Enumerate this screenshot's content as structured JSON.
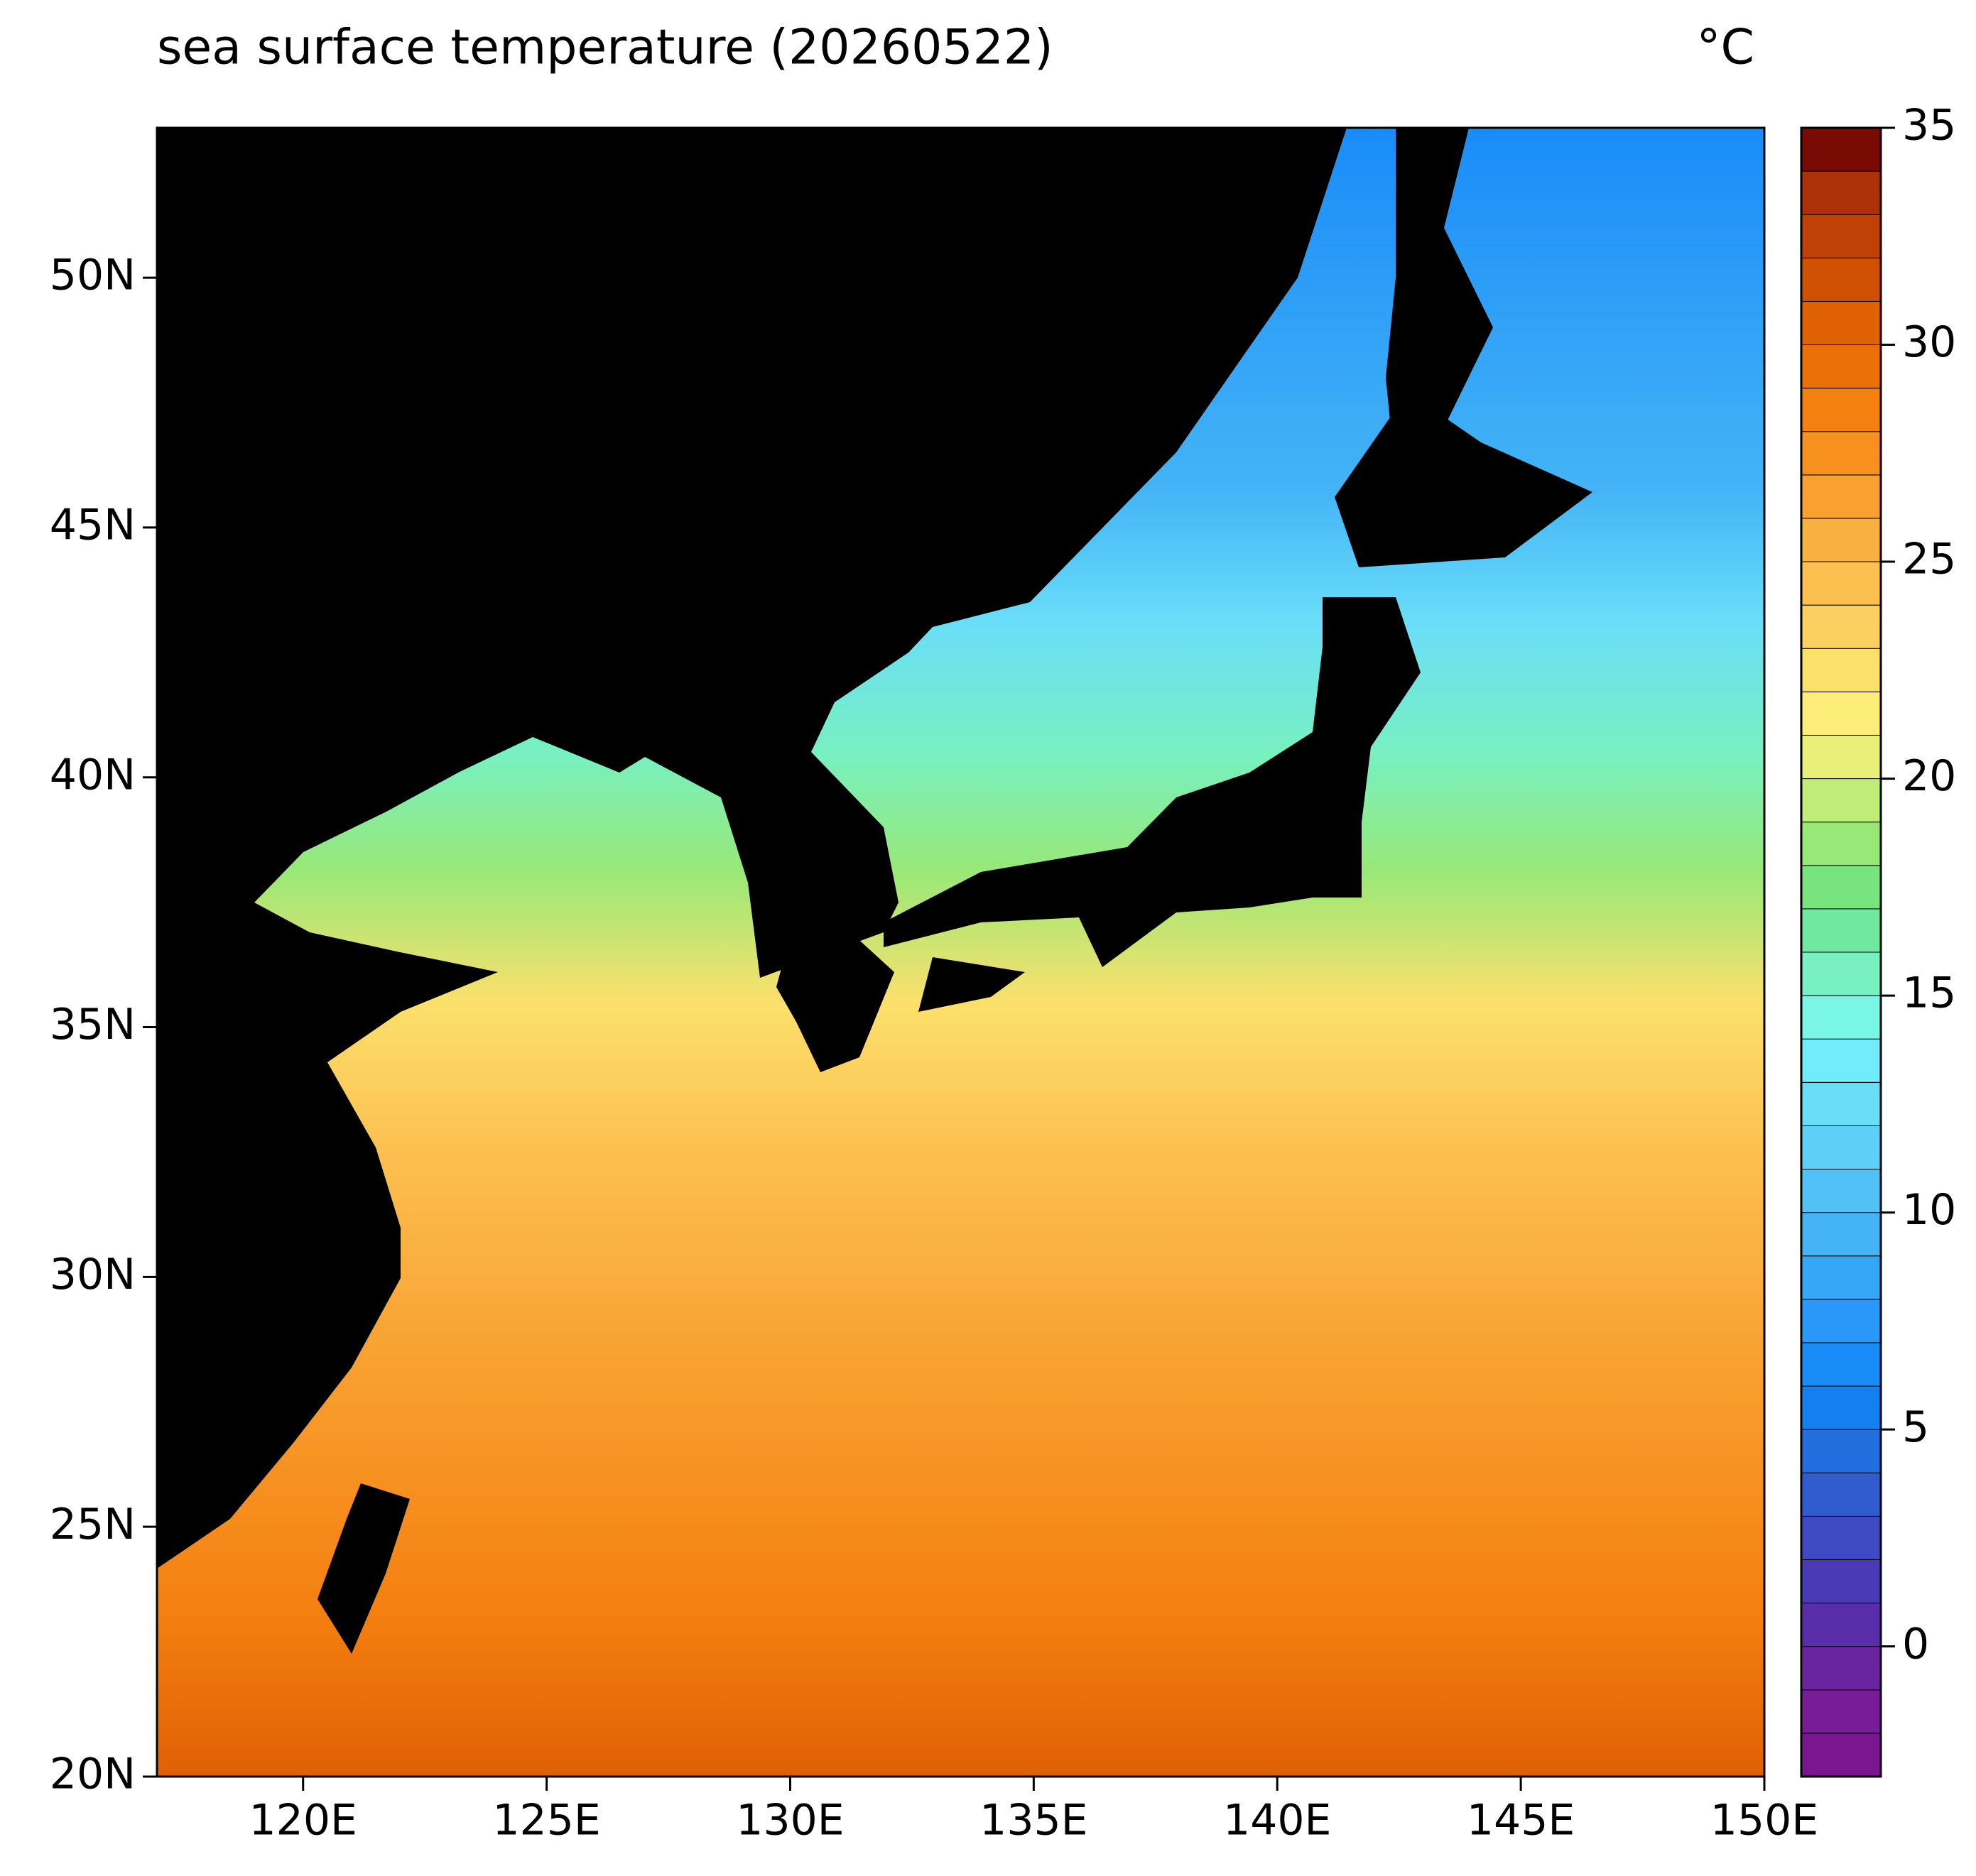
{
  "chart_data": {
    "type": "map",
    "title": "sea surface temperature (20260522)",
    "unit": "°C",
    "xlim": [
      117,
      150
    ],
    "ylim": [
      20,
      53
    ],
    "xticks": [
      {
        "value": 120,
        "label": "120E"
      },
      {
        "value": 125,
        "label": "125E"
      },
      {
        "value": 130,
        "label": "130E"
      },
      {
        "value": 135,
        "label": "135E"
      },
      {
        "value": 140,
        "label": "140E"
      },
      {
        "value": 145,
        "label": "145E"
      },
      {
        "value": 150,
        "label": "150E"
      }
    ],
    "yticks": [
      {
        "value": 20,
        "label": "20N"
      },
      {
        "value": 25,
        "label": "25N"
      },
      {
        "value": 30,
        "label": "30N"
      },
      {
        "value": 35,
        "label": "35N"
      },
      {
        "value": 40,
        "label": "40N"
      },
      {
        "value": 45,
        "label": "45N"
      },
      {
        "value": 50,
        "label": "50N"
      }
    ],
    "clim": [
      -3,
      35
    ],
    "cticks": [
      0,
      5,
      10,
      15,
      20,
      25,
      30,
      35
    ],
    "colors": [
      "#7a1690",
      "#781c98",
      "#6a24a0",
      "#5a2eaa",
      "#4a3ab6",
      "#3e4ac2",
      "#305cd0",
      "#226ede",
      "#1480f0",
      "#1a8cf8",
      "#2a98f8",
      "#36a6f6",
      "#44b4f6",
      "#52c2f6",
      "#5ed0f8",
      "#6adef8",
      "#72ecfa",
      "#7af6e6",
      "#78f0c0",
      "#70e8a0",
      "#78e480",
      "#98e878",
      "#c0ec78",
      "#e8f07a",
      "#fcec78",
      "#fce06c",
      "#fcd060",
      "#fcc050",
      "#fab040",
      "#f8a030",
      "#f89020",
      "#f48010",
      "#ec7008",
      "#e06004",
      "#d05004",
      "#c04006",
      "#ac3008",
      "#7a0a04"
    ]
  }
}
